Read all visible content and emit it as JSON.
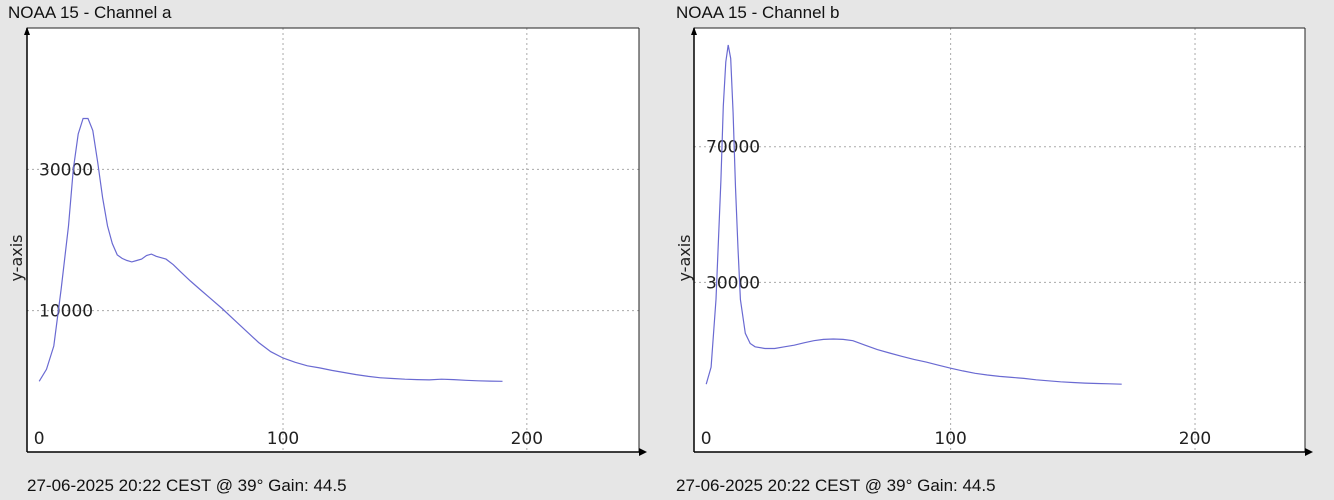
{
  "panels": [
    {
      "title": "NOAA 15 - Channel a",
      "footer": "27-06-2025 20:22 CEST @ 39° Gain: 44.5"
    },
    {
      "title": "NOAA 15 - Channel b",
      "footer": "27-06-2025 20:22 CEST @ 39° Gain: 44.5"
    }
  ],
  "colors": {
    "line": "#6a6ad2",
    "axis": "#000000",
    "grid": "#aaaaaa",
    "plot_bg": "#ffffff",
    "page_bg": "#e6e6e6"
  },
  "chart_data": [
    {
      "type": "line",
      "title": "NOAA 15 - Channel a",
      "xlabel": "",
      "ylabel": "y-axis",
      "xlim": [
        -5,
        246
      ],
      "ylim": [
        -10000,
        50000
      ],
      "x_ticks": [
        0,
        100,
        200
      ],
      "y_ticks": [
        10000,
        30000
      ],
      "grid": true,
      "series": [
        {
          "x": [
            0,
            3,
            6,
            9,
            12,
            14,
            16,
            18,
            20,
            22,
            24,
            26,
            28,
            30,
            32,
            34,
            36,
            38,
            40,
            42,
            44,
            46,
            48,
            50,
            52,
            55,
            58,
            62,
            66,
            70,
            75,
            80,
            85,
            90,
            95,
            100,
            105,
            110,
            115,
            120,
            125,
            130,
            135,
            140,
            145,
            150,
            155,
            160,
            165,
            170,
            175,
            180,
            185,
            190
          ],
          "y": [
            0,
            1700,
            5000,
            13000,
            22000,
            30000,
            35000,
            37200,
            37200,
            35500,
            31000,
            26000,
            22000,
            19500,
            17900,
            17400,
            17100,
            16900,
            17100,
            17300,
            17800,
            18000,
            17700,
            17500,
            17300,
            16500,
            15500,
            14200,
            13000,
            11800,
            10300,
            8700,
            7100,
            5500,
            4200,
            3300,
            2700,
            2200,
            1900,
            1550,
            1250,
            950,
            700,
            500,
            400,
            300,
            250,
            200,
            300,
            250,
            150,
            80,
            30,
            0
          ]
        }
      ]
    },
    {
      "type": "line",
      "title": "NOAA 15 - Channel b",
      "xlabel": "",
      "ylabel": "y-axis",
      "xlim": [
        -5,
        245
      ],
      "ylim": [
        -20000,
        105000
      ],
      "x_ticks": [
        0,
        100,
        200
      ],
      "y_ticks": [
        30000,
        70000
      ],
      "grid": true,
      "series": [
        {
          "x": [
            0,
            2,
            4,
            6,
            7,
            8,
            9,
            10,
            11,
            12,
            13,
            14,
            16,
            18,
            20,
            24,
            28,
            32,
            36,
            40,
            44,
            48,
            52,
            56,
            60,
            65,
            70,
            75,
            80,
            85,
            90,
            95,
            100,
            105,
            110,
            115,
            120,
            125,
            130,
            135,
            140,
            145,
            150,
            155,
            160,
            165,
            170
          ],
          "y": [
            0,
            5000,
            25000,
            60000,
            82000,
            95000,
            100000,
            96000,
            80000,
            58000,
            40000,
            25000,
            15000,
            12000,
            11000,
            10500,
            10500,
            11000,
            11500,
            12200,
            12800,
            13200,
            13300,
            13200,
            12800,
            11500,
            10200,
            9200,
            8200,
            7300,
            6500,
            5600,
            4700,
            3900,
            3200,
            2700,
            2300,
            2000,
            1700,
            1300,
            1000,
            700,
            500,
            300,
            200,
            100,
            0
          ]
        }
      ]
    }
  ]
}
